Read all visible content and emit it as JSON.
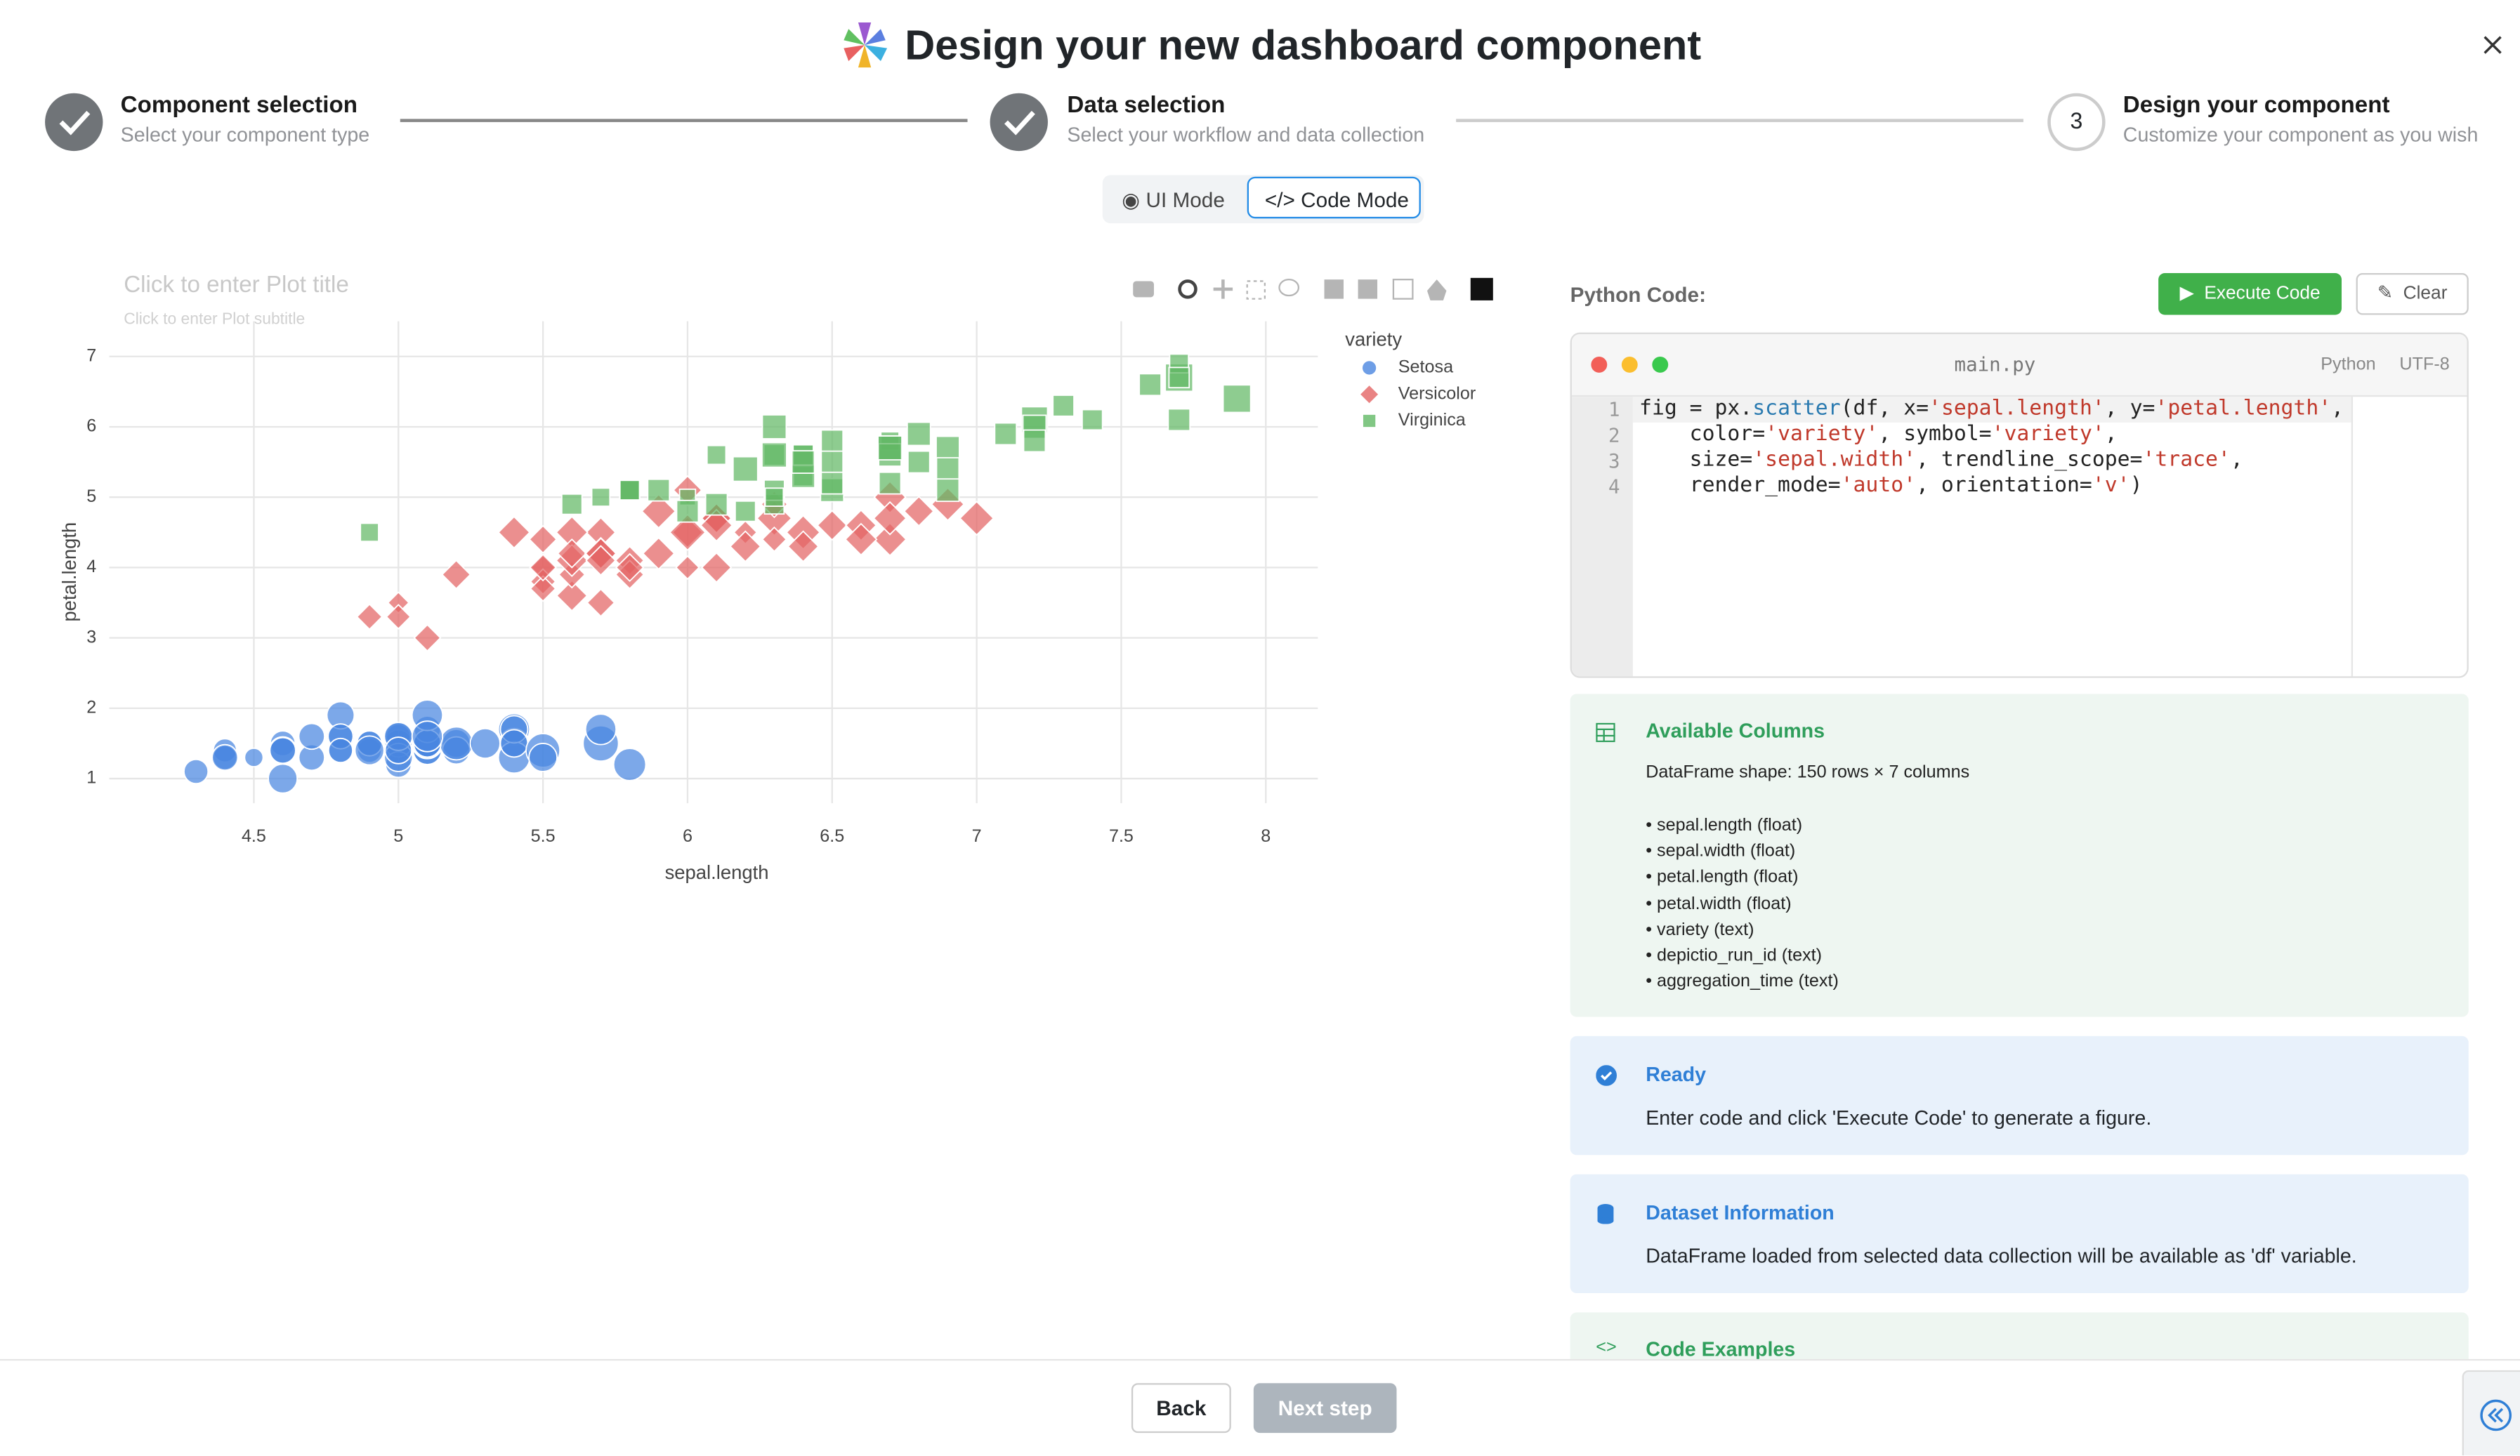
{
  "header": {
    "title": "Design your new dashboard component"
  },
  "steps": [
    {
      "title": "Component selection",
      "subtitle": "Select your component type"
    },
    {
      "title": "Data selection",
      "subtitle": "Select your workflow and data collection"
    },
    {
      "number": "3",
      "title": "Design your component",
      "subtitle": "Customize your component as you wish"
    }
  ],
  "mode_toggle": {
    "ui": "UI Mode",
    "code": "Code Mode"
  },
  "chart_data": {
    "type": "scatter",
    "title": "Click to enter Plot title",
    "subtitle": "Click to enter Plot subtitle",
    "x_label": "sepal.length",
    "y_label": "petal.length",
    "legend_title": "variety",
    "xlim": [
      4.0,
      8.18
    ],
    "ylim": [
      0.65,
      7.5
    ],
    "xticks": [
      4.5,
      5,
      5.5,
      6,
      6.5,
      7,
      7.5,
      8
    ],
    "yticks": [
      1,
      2,
      3,
      4,
      5,
      6,
      7
    ],
    "grid": true,
    "series": [
      {
        "name": "Setosa",
        "color": "#4a86e0",
        "symbol": "circle",
        "x": [
          5.1,
          4.9,
          4.7,
          4.6,
          5.0,
          5.4,
          4.6,
          5.0,
          4.4,
          4.9,
          5.4,
          4.8,
          4.8,
          4.3,
          5.8,
          5.7,
          5.4,
          5.1,
          5.7,
          5.1,
          5.4,
          5.1,
          4.6,
          5.1,
          4.8,
          5.0,
          5.0,
          5.2,
          5.2,
          4.7,
          4.8,
          5.4,
          5.2,
          5.5,
          4.9,
          5.0,
          5.5,
          4.9,
          4.4,
          5.1,
          5.0,
          4.5,
          4.4,
          5.0,
          5.1,
          4.8,
          5.1,
          4.6,
          5.3,
          5.0
        ],
        "values": [
          1.4,
          1.4,
          1.3,
          1.5,
          1.4,
          1.7,
          1.4,
          1.5,
          1.4,
          1.5,
          1.5,
          1.6,
          1.4,
          1.1,
          1.2,
          1.5,
          1.3,
          1.4,
          1.7,
          1.5,
          1.7,
          1.5,
          1.0,
          1.7,
          1.9,
          1.6,
          1.6,
          1.5,
          1.4,
          1.6,
          1.6,
          1.5,
          1.5,
          1.4,
          1.5,
          1.2,
          1.3,
          1.4,
          1.3,
          1.5,
          1.3,
          1.3,
          1.3,
          1.6,
          1.9,
          1.4,
          1.6,
          1.4,
          1.5,
          1.4
        ],
        "sizes": [
          3.5,
          3.0,
          3.2,
          3.1,
          3.6,
          3.9,
          3.4,
          3.4,
          2.9,
          3.1,
          3.7,
          3.4,
          3.0,
          3.0,
          4.0,
          4.4,
          3.9,
          3.5,
          3.8,
          3.8,
          3.4,
          3.7,
          3.6,
          3.3,
          3.4,
          3.0,
          3.4,
          3.5,
          3.4,
          3.2,
          3.1,
          3.4,
          4.1,
          4.2,
          3.1,
          3.2,
          3.5,
          3.6,
          3.0,
          3.4,
          3.5,
          2.3,
          3.2,
          3.5,
          3.8,
          3.0,
          3.8,
          3.2,
          3.7,
          3.3
        ]
      },
      {
        "name": "Versicolor",
        "color": "#e36464",
        "symbol": "diamond",
        "x": [
          7.0,
          6.4,
          6.9,
          5.5,
          6.5,
          5.7,
          6.3,
          4.9,
          6.6,
          5.2,
          5.0,
          5.9,
          6.0,
          6.1,
          5.6,
          6.7,
          5.6,
          5.8,
          6.2,
          5.6,
          5.9,
          6.1,
          6.3,
          6.1,
          6.4,
          6.6,
          6.8,
          6.7,
          6.0,
          5.7,
          5.5,
          5.5,
          5.8,
          6.0,
          5.4,
          6.0,
          6.7,
          6.3,
          5.6,
          5.5,
          5.5,
          6.1,
          5.8,
          5.0,
          5.6,
          5.7,
          5.7,
          6.2,
          5.1,
          5.7
        ],
        "values": [
          4.7,
          4.5,
          4.9,
          4.0,
          4.6,
          4.5,
          4.7,
          3.3,
          4.6,
          3.9,
          3.5,
          4.2,
          4.0,
          4.7,
          3.6,
          4.4,
          4.5,
          4.1,
          4.5,
          3.9,
          4.8,
          4.0,
          4.9,
          4.7,
          4.3,
          4.4,
          4.8,
          5.0,
          4.5,
          3.5,
          3.8,
          3.7,
          3.9,
          5.1,
          4.5,
          4.5,
          4.7,
          4.4,
          4.1,
          4.0,
          4.4,
          4.6,
          4.0,
          3.3,
          4.2,
          4.2,
          4.2,
          4.3,
          3.0,
          4.1
        ],
        "sizes": [
          3.2,
          3.2,
          3.1,
          2.3,
          2.8,
          2.8,
          3.3,
          2.4,
          2.9,
          2.7,
          2.0,
          3.0,
          2.2,
          2.9,
          2.9,
          3.1,
          3.0,
          2.7,
          2.2,
          2.5,
          3.2,
          2.8,
          2.5,
          2.8,
          2.9,
          3.0,
          2.8,
          3.0,
          2.9,
          2.6,
          2.4,
          2.4,
          2.7,
          2.7,
          3.0,
          3.4,
          3.1,
          2.3,
          3.0,
          2.5,
          2.6,
          3.0,
          2.6,
          2.3,
          2.7,
          3.0,
          2.9,
          2.9,
          2.5,
          2.8
        ]
      },
      {
        "name": "Virginica",
        "color": "#62b965",
        "symbol": "square",
        "x": [
          6.3,
          5.8,
          7.1,
          6.3,
          6.5,
          7.6,
          4.9,
          7.3,
          6.7,
          7.2,
          6.5,
          6.4,
          6.8,
          5.7,
          5.8,
          6.4,
          6.5,
          7.7,
          7.7,
          6.0,
          6.9,
          5.6,
          7.7,
          6.3,
          6.7,
          7.2,
          6.2,
          6.1,
          6.4,
          7.2,
          7.4,
          7.9,
          6.4,
          6.3,
          6.1,
          7.7,
          6.3,
          6.4,
          6.0,
          6.9,
          6.7,
          6.9,
          5.8,
          6.8,
          6.7,
          6.7,
          6.3,
          6.5,
          6.2,
          5.9
        ],
        "values": [
          6.0,
          5.1,
          5.9,
          5.6,
          5.8,
          6.6,
          4.5,
          6.3,
          5.8,
          6.1,
          5.1,
          5.3,
          5.5,
          5.0,
          5.1,
          5.3,
          5.5,
          6.7,
          6.9,
          5.0,
          5.7,
          4.9,
          6.7,
          4.9,
          5.7,
          6.0,
          4.8,
          4.9,
          5.6,
          5.8,
          6.1,
          6.4,
          5.6,
          5.1,
          5.6,
          6.1,
          5.6,
          5.5,
          4.8,
          5.4,
          5.6,
          5.1,
          5.1,
          5.9,
          5.7,
          5.2,
          5.0,
          5.2,
          5.4,
          5.1
        ],
        "sizes": [
          3.3,
          2.7,
          3.0,
          2.9,
          3.0,
          3.0,
          2.5,
          2.9,
          2.5,
          3.6,
          3.2,
          2.7,
          3.0,
          2.5,
          2.8,
          3.2,
          3.0,
          3.8,
          2.6,
          2.2,
          3.2,
          2.8,
          2.8,
          2.7,
          3.3,
          3.2,
          2.8,
          3.0,
          2.8,
          3.0,
          2.8,
          3.8,
          2.8,
          2.8,
          2.6,
          3.0,
          3.4,
          3.1,
          3.0,
          3.1,
          3.1,
          3.1,
          2.7,
          3.2,
          3.3,
          3.0,
          2.5,
          3.0,
          3.4,
          3.0
        ]
      }
    ]
  },
  "editor": {
    "label": "Python Code:",
    "execute": "Execute Code",
    "clear": "Clear",
    "filename": "main.py",
    "language": "Python",
    "encoding": "UTF-8",
    "line_numbers": [
      1,
      2,
      3,
      4
    ],
    "lines": [
      "fig = px.scatter(df, x='sepal.length', y='petal.length',",
      "    color='variety', symbol='variety',",
      "    size='sepal.width', trendline_scope='trace',",
      "    render_mode='auto', orientation='v')"
    ]
  },
  "panels": {
    "columns": {
      "title": "Available Columns",
      "shape": "DataFrame shape: 150 rows × 7 columns",
      "items": [
        "• sepal.length (float)",
        "• sepal.width (float)",
        "• petal.length (float)",
        "• petal.width (float)",
        "• variety (text)",
        "• depictio_run_id (text)",
        "• aggregation_time (text)"
      ]
    },
    "ready": {
      "title": "Ready",
      "text": "Enter code and click 'Execute Code' to generate a figure."
    },
    "dataset": {
      "title": "Dataset Information",
      "text": "DataFrame loaded from selected data collection will be available as 'df' variable."
    },
    "examples": {
      "title": "Code Examples"
    }
  },
  "footer": {
    "back": "Back",
    "next": "Next step"
  }
}
